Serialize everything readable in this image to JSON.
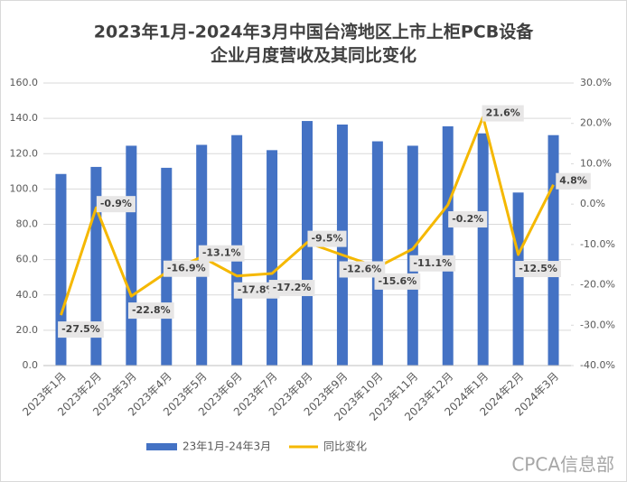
{
  "chart_data": {
    "type": "bar_line",
    "title": [
      "2023年1月-2024年3月中国台湾地区上市上柜PCB设备",
      "企业月度营收及其同比变化"
    ],
    "categories": [
      "2023年1月",
      "2023年2月",
      "2023年3月",
      "2023年4月",
      "2023年5月",
      "2023年6月",
      "2023年7月",
      "2023年8月",
      "2023年9月",
      "2023年10月",
      "2023年11月",
      "2023年12月",
      "2024年1月",
      "2024年2月",
      "2024年3月"
    ],
    "series": [
      {
        "name": "23年1月-24年3月",
        "type": "bar",
        "color": "#4472c4",
        "values": [
          108.5,
          112.5,
          124.5,
          112,
          125,
          130.5,
          122,
          138.5,
          136.5,
          127,
          124.5,
          135.5,
          131.5,
          98,
          130.5
        ]
      },
      {
        "name": "同比变化",
        "type": "line",
        "axis": "y2",
        "color": "#f5b800",
        "values": [
          -27.5,
          -0.9,
          -22.8,
          -16.9,
          -13.1,
          -17.8,
          -17.2,
          -9.5,
          -12.6,
          -15.6,
          -11.1,
          -0.2,
          21.6,
          -12.5,
          4.8
        ],
        "value_labels": [
          "-27.5%",
          "-0.9%",
          "-22.8%",
          "-16.9%",
          "-13.1%",
          "-17.8%",
          "-17.2%",
          "-9.5%",
          "-12.6%",
          "-15.6%",
          "-11.1%",
          "-0.2%",
          "21.6%",
          "-12.5%",
          "4.8%"
        ]
      }
    ],
    "ylim": [
      0,
      160
    ],
    "yticks": [
      {
        "value": 0,
        "label": "0.0"
      },
      {
        "value": 20,
        "label": "20.0"
      },
      {
        "value": 40,
        "label": "40.0"
      },
      {
        "value": 60,
        "label": "60.0"
      },
      {
        "value": 80,
        "label": "80.0"
      },
      {
        "value": 100,
        "label": "100.0"
      },
      {
        "value": 120,
        "label": "120.0"
      },
      {
        "value": 140,
        "label": "140.0"
      },
      {
        "value": 160,
        "label": "160.0"
      }
    ],
    "y2lim": [
      -40,
      30
    ],
    "y2ticks": [
      {
        "value": -40,
        "label": "-40.0%"
      },
      {
        "value": -30,
        "label": "-30.0%"
      },
      {
        "value": -20,
        "label": "-20.0%"
      },
      {
        "value": -10,
        "label": "-10.0%"
      },
      {
        "value": 0,
        "label": "0.0%"
      },
      {
        "value": 10,
        "label": "10.0%"
      },
      {
        "value": 20,
        "label": "20.0%"
      },
      {
        "value": 30,
        "label": "30.0%"
      }
    ],
    "grid": true,
    "legend": "bottom",
    "watermark": "CPCA信息部"
  }
}
